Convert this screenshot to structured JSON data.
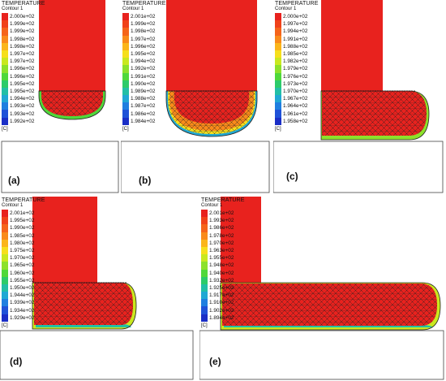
{
  "panels": [
    {
      "id": "a",
      "label": "(a)",
      "title": "TEMPERATURE",
      "subtitle": "Contour 1",
      "unit": "[C]",
      "scale": [
        "2.000e+02",
        "1.999e+02",
        "1.999e+02",
        "1.998e+02",
        "1.998e+02",
        "1.997e+02",
        "1.997e+02",
        "1.996e+02",
        "1.996e+02",
        "1.995e+02",
        "1.995e+02",
        "1.994e+02",
        "1.993e+02",
        "1.993e+02",
        "1.992e+02"
      ]
    },
    {
      "id": "b",
      "label": "(b)",
      "title": "TEMPERATURE",
      "subtitle": "Contour 1",
      "unit": "[C]",
      "scale": [
        "2.001e+02",
        "1.999e+02",
        "1.998e+02",
        "1.997e+02",
        "1.996e+02",
        "1.995e+02",
        "1.994e+02",
        "1.992e+02",
        "1.991e+02",
        "1.990e+02",
        "1.989e+02",
        "1.988e+02",
        "1.987e+02",
        "1.986e+02",
        "1.984e+02"
      ]
    },
    {
      "id": "c",
      "label": "(c)",
      "title": "TEMPERATURE",
      "subtitle": "Contour 1",
      "unit": "[C]",
      "scale": [
        "2.000e+02",
        "1.997e+02",
        "1.994e+02",
        "1.991e+02",
        "1.988e+02",
        "1.985e+02",
        "1.982e+02",
        "1.979e+02",
        "1.976e+02",
        "1.973e+02",
        "1.970e+02",
        "1.967e+02",
        "1.964e+02",
        "1.961e+02",
        "1.958e+02"
      ]
    },
    {
      "id": "d",
      "label": "(d)",
      "title": "TEMPERATURE",
      "subtitle": "Contour 1",
      "unit": "[C]",
      "scale": [
        "2.001e+02",
        "1.995e+02",
        "1.990e+02",
        "1.985e+02",
        "1.980e+02",
        "1.975e+02",
        "1.970e+02",
        "1.965e+02",
        "1.960e+02",
        "1.955e+02",
        "1.950e+02",
        "1.944e+02",
        "1.939e+02",
        "1.934e+02",
        "1.929e+02"
      ]
    },
    {
      "id": "e",
      "label": "(e)",
      "title": "TEMPERATURE",
      "subtitle": "Contour 1",
      "unit": "[C]",
      "scale": [
        "2.001e+02",
        "1.993e+02",
        "1.986e+02",
        "1.978e+02",
        "1.970e+02",
        "1.963e+02",
        "1.955e+02",
        "1.948e+02",
        "1.940e+02",
        "1.932e+02",
        "1.925e+02",
        "1.917e+02",
        "1.910e+02",
        "1.902e+02",
        "1.894e+02"
      ]
    }
  ],
  "colormap": [
    "#e8221e",
    "#f0421a",
    "#f5641a",
    "#f98a1a",
    "#fbb51a",
    "#f6df1c",
    "#c9e81f",
    "#8ce12b",
    "#4fd83a",
    "#2ccb6a",
    "#22bfa6",
    "#20a8d4",
    "#1f7fe0",
    "#1f52d8",
    "#1a2ec6"
  ]
}
